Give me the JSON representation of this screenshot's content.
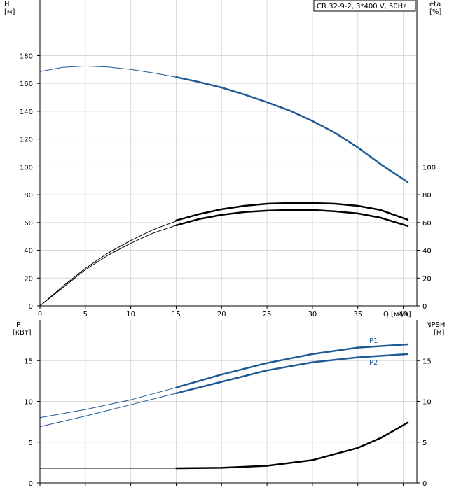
{
  "header": {
    "pump_label": "CR 32-9-2, 3*400 V, 50Hz"
  },
  "chart_data": [
    {
      "type": "line",
      "panel": "upper",
      "x_label": "Q [м³/ч]",
      "x_ticks": [
        0,
        5,
        10,
        15,
        20,
        25,
        30,
        35,
        40
      ],
      "xlim": [
        0,
        41.5
      ],
      "left_axis": {
        "label_line1": "H",
        "label_line2": "[м]",
        "ticks": [
          0,
          20,
          40,
          60,
          80,
          100,
          120,
          140,
          160,
          180
        ],
        "ylim": [
          0,
          220
        ]
      },
      "right_axis": {
        "label_line1": "eta",
        "label_line2": "[%]",
        "ticks": [
          0,
          20,
          40,
          60,
          80,
          100
        ],
        "ylim": [
          0,
          220
        ]
      },
      "grid": true,
      "series": [
        {
          "axis": "left",
          "color": "#1f5a96",
          "thin": {
            "x": [
              0,
              2.5,
              5,
              7.5,
              10,
              12.5,
              15
            ],
            "y": [
              168.5,
              171.5,
              172.5,
              171.8,
              170,
              167.5,
              164.5
            ]
          },
          "thick": {
            "x": [
              15,
              17.5,
              20,
              22.5,
              25,
              27.5,
              30,
              32.5,
              35,
              37.5,
              40.5
            ],
            "y": [
              164.5,
              161,
              157,
              152,
              146.5,
              140.5,
              133,
              124.5,
              114,
              102,
              89
            ]
          }
        },
        {
          "axis": "right",
          "color": "#000000",
          "thin": {
            "x": [
              0,
              2.5,
              5,
              7.5,
              10,
              12.5,
              15
            ],
            "y": [
              0,
              14,
              27,
              38,
              47,
              55,
              61
            ]
          },
          "thick": {
            "x": [
              15,
              17.5,
              20,
              22.5,
              25,
              27.5,
              30,
              32.5,
              35,
              37.5,
              40.5
            ],
            "y": [
              61.5,
              66,
              69.5,
              72,
              73.5,
              74,
              74,
              73.5,
              72,
              69,
              62
            ]
          }
        },
        {
          "axis": "right",
          "color": "#000000",
          "thin": {
            "x": [
              0,
              2.5,
              5,
              7.5,
              10,
              12.5,
              15
            ],
            "y": [
              0,
              13,
              26,
              36.5,
              45,
              52.5,
              58
            ]
          },
          "thick": {
            "x": [
              15,
              17.5,
              20,
              22.5,
              25,
              27.5,
              30,
              32.5,
              35,
              37.5,
              40.5
            ],
            "y": [
              58,
              62.5,
              65.5,
              67.5,
              68.5,
              69,
              69,
              68,
              66.5,
              63.5,
              57.5
            ]
          }
        }
      ]
    },
    {
      "type": "line",
      "panel": "lower",
      "xlim": [
        0,
        41.5
      ],
      "left_axis": {
        "label_line1": "P",
        "label_line2": "[кВт]",
        "ticks": [
          0,
          5,
          10,
          15
        ],
        "ylim": [
          0,
          20
        ]
      },
      "right_axis": {
        "label_line1": "NPSH",
        "label_line2": "[м]",
        "ticks": [
          0,
          5,
          10,
          15
        ],
        "ylim": [
          0,
          20
        ]
      },
      "grid": true,
      "series": [
        {
          "name": "P1",
          "axis": "left",
          "color": "#1f5a96",
          "thin": {
            "x": [
              0,
              5,
              10,
              15
            ],
            "y": [
              8,
              9,
              10.2,
              11.7
            ]
          },
          "thick": {
            "x": [
              15,
              20,
              25,
              30,
              35,
              40.5
            ],
            "y": [
              11.7,
              13.3,
              14.7,
              15.8,
              16.6,
              17
            ]
          }
        },
        {
          "name": "P2",
          "axis": "left",
          "color": "#1f5a96",
          "thin": {
            "x": [
              0,
              5,
              10,
              15
            ],
            "y": [
              6.9,
              8.2,
              9.6,
              11
            ]
          },
          "thick": {
            "x": [
              15,
              20,
              25,
              30,
              35,
              40.5
            ],
            "y": [
              11,
              12.4,
              13.8,
              14.8,
              15.4,
              15.8
            ]
          }
        },
        {
          "axis": "right",
          "color": "#000000",
          "thin": {
            "x": [
              0,
              5,
              10,
              15
            ],
            "y": [
              1.8,
              1.8,
              1.8,
              1.8
            ]
          },
          "thick": {
            "x": [
              15,
              20,
              25,
              30,
              35,
              37.5,
              40.5
            ],
            "y": [
              1.8,
              1.85,
              2.1,
              2.8,
              4.3,
              5.5,
              7.4
            ]
          }
        }
      ]
    }
  ]
}
